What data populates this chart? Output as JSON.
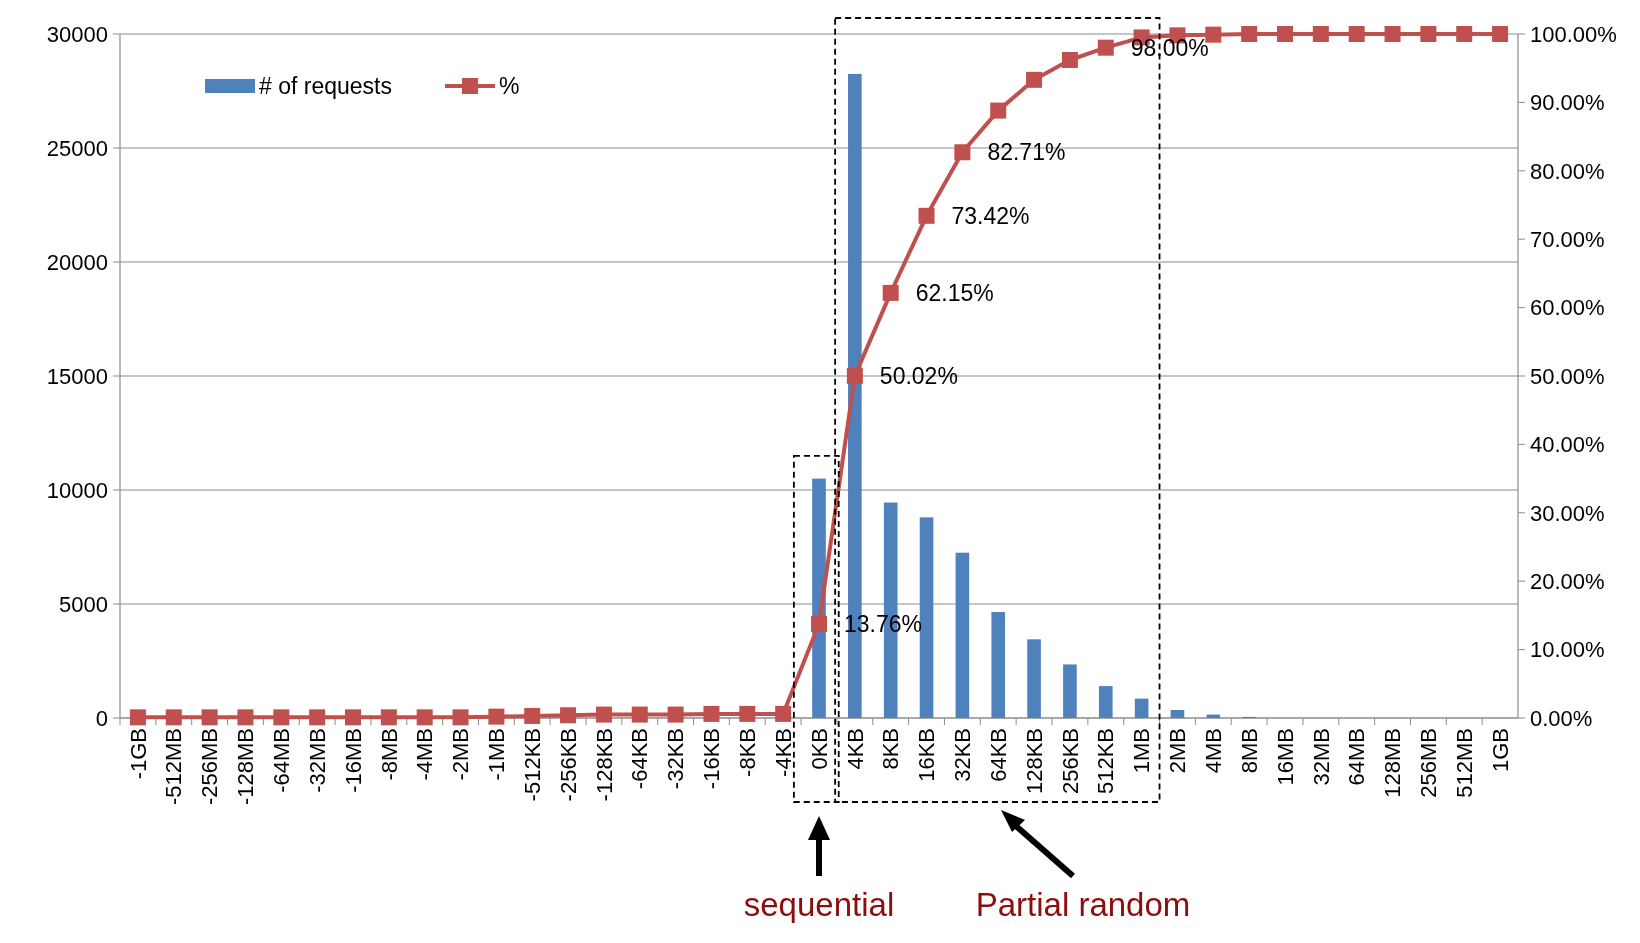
{
  "chart_data": {
    "type": "bar",
    "categories": [
      "-1GB",
      "-512MB",
      "-256MB",
      "-128MB",
      "-64MB",
      "-32MB",
      "-16MB",
      "-8MB",
      "-4MB",
      "-2MB",
      "-1MB",
      "-512KB",
      "-256KB",
      "-128KB",
      "-64KB",
      "-32KB",
      "-16KB",
      "-8KB",
      "-4KB",
      "0KB",
      "4KB",
      "8KB",
      "16KB",
      "32KB",
      "64KB",
      "128KB",
      "256KB",
      "512KB",
      "1MB",
      "2MB",
      "4MB",
      "8MB",
      "16MB",
      "32MB",
      "64MB",
      "128MB",
      "256MB",
      "512MB",
      "1GB"
    ],
    "series": [
      {
        "name": "# of requests",
        "color": "#4f81bd",
        "values": [
          0,
          0,
          0,
          0,
          0,
          0,
          0,
          0,
          0,
          0,
          0,
          0,
          0,
          0,
          0,
          0,
          0,
          0,
          0,
          10500,
          28250,
          9450,
          8800,
          7250,
          4650,
          3450,
          2350,
          1400,
          850,
          350,
          150,
          50,
          0,
          0,
          0,
          0,
          0,
          0,
          0
        ]
      },
      {
        "name": "%",
        "type": "line",
        "axis": "y2",
        "color": "#c0504d",
        "marker": "square",
        "values": [
          0.1,
          0.1,
          0.1,
          0.1,
          0.1,
          0.1,
          0.1,
          0.1,
          0.1,
          0.1,
          0.2,
          0.3,
          0.4,
          0.5,
          0.5,
          0.5,
          0.6,
          0.6,
          0.6,
          13.76,
          50.02,
          62.15,
          73.42,
          82.71,
          88.8,
          93.3,
          96.2,
          98.0,
          99.5,
          99.8,
          99.9,
          100,
          100,
          100,
          100,
          100,
          100,
          100,
          100
        ],
        "value_labels": [
          null,
          null,
          null,
          null,
          null,
          null,
          null,
          null,
          null,
          null,
          null,
          null,
          null,
          null,
          null,
          null,
          null,
          null,
          null,
          "13.76%",
          "50.02%",
          "62.15%",
          "73.42%",
          "82.71%",
          null,
          null,
          null,
          "98.00%",
          null,
          null,
          null,
          null,
          null,
          null,
          null,
          null,
          null,
          null,
          null
        ]
      }
    ],
    "ylim": [
      0,
      30000
    ],
    "yticks": [
      0,
      5000,
      10000,
      15000,
      20000,
      25000,
      30000
    ],
    "y2lim": [
      0,
      100
    ],
    "y2ticks": [
      {
        "value": 0,
        "label": "0.00%"
      },
      {
        "value": 10,
        "label": "10.00%"
      },
      {
        "value": 20,
        "label": "20.00%"
      },
      {
        "value": 30,
        "label": "30.00%"
      },
      {
        "value": 40,
        "label": "40.00%"
      },
      {
        "value": 50,
        "label": "50.00%"
      },
      {
        "value": 60,
        "label": "60.00%"
      },
      {
        "value": 70,
        "label": "70.00%"
      },
      {
        "value": 80,
        "label": "80.00%"
      },
      {
        "value": 90,
        "label": "90.00%"
      },
      {
        "value": 100,
        "label": "100.00%"
      }
    ],
    "grid": "y",
    "legend": "top left",
    "annotations": [
      "sequential",
      "Partial random"
    ]
  }
}
